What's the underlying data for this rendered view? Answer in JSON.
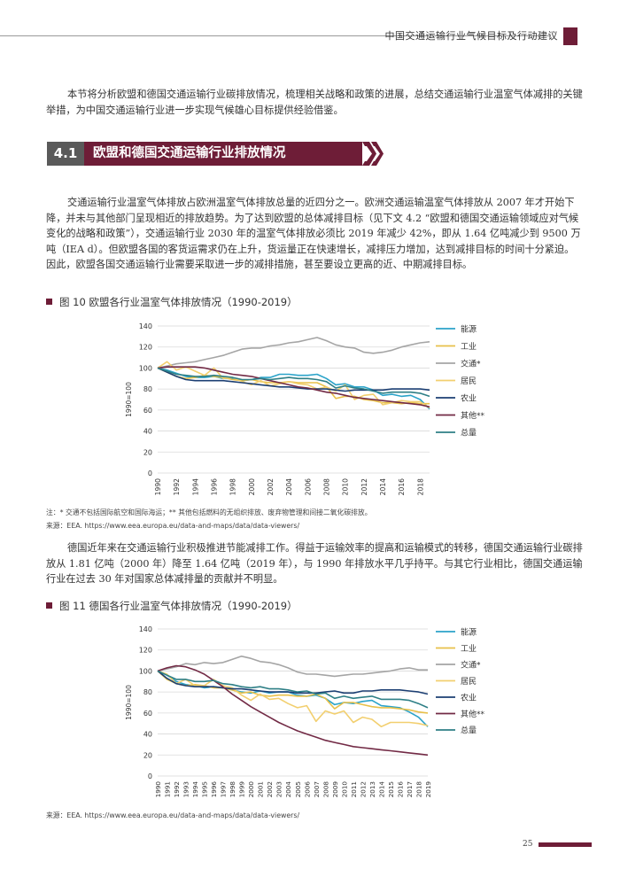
{
  "header": {
    "title": "中国交通运输行业气候目标及行动建议"
  },
  "intro": {
    "text": "本节将分析欧盟和德国交通运输行业碳排放情况，梳理相关战略和政策的进展，总结交通运输行业温室气体减排的关键举措，为中国交通运输行业进一步实现气候雄心目标提供经验借鉴。"
  },
  "section": {
    "number": "4.1",
    "title": "欧盟和德国交通运输行业排放情况"
  },
  "para_eu": {
    "text": "交通运输行业温室气体排放占欧洲温室气体排放总量的近四分之一。欧洲交通运输温室气体排放从 2007 年才开始下降，并未与其他部门呈现相近的排放趋势。为了达到欧盟的总体减排目标（见下文 4.2 “欧盟和德国交通运输领域应对气候变化的战略和政策”），交通运输行业 2030 年的温室气体排放必须比 2019 年减少 42%，即从 1.64 亿吨减少到 9500 万吨（IEA d）。但欧盟各国的客货运需求仍在上升，货运量正在快速增长，减排压力增加，达到减排目标的时间十分紧迫。因此，欧盟各国交通运输行业需要采取进一步的减排措施，甚至要设立更高的近、中期减排目标。"
  },
  "para_de": {
    "text": "德国近年来在交通运输行业积极推进节能减排工作。得益于运输效率的提高和运输模式的转移，德国交通运输行业碳排放从 1.81 亿吨（2000 年）降至 1.64 亿吨（2019 年），与 1990 年排放水平几乎持平。与其它行业相比，德国交通运输行业在过去 30 年对国家总体减排量的贡献并不明显。"
  },
  "fig10": {
    "title": "图 10 欧盟各行业温室气体排放情况（1990-2019）"
  },
  "fig11": {
    "title": "图 11 德国各行业温室气体排放情况（1990-2019）"
  },
  "notes": {
    "note1": "注：* 交通不包括国际航空和国际海运；** 其他包括燃料的无组织排放、废弃物管理和间接二氧化碳排放。",
    "source1": "来源：EEA. https://www.eea.europa.eu/data-and-maps/data/data-viewers/",
    "source2": "来源：EEA. https://www.eea.europa.eu/data-and-maps/data/data-viewers/"
  },
  "page_number": "25",
  "colors": {
    "accent": "#6e1d37",
    "section_num_bg": "#5a5a5a"
  },
  "chart_data": [
    {
      "type": "line",
      "title": "图 10 欧盟各行业温室气体排放情况（1990-2019）",
      "ylabel": "1990=100",
      "ylim": [
        0,
        140
      ],
      "yticks": [
        "0",
        "20",
        "40",
        "60",
        "80",
        "100",
        "120",
        "140"
      ],
      "x": [
        1990,
        1991,
        1992,
        1993,
        1994,
        1995,
        1996,
        1997,
        1998,
        1999,
        2000,
        2001,
        2002,
        2003,
        2004,
        2005,
        2006,
        2007,
        2008,
        2009,
        2010,
        2011,
        2012,
        2013,
        2014,
        2015,
        2016,
        2017,
        2018,
        2019
      ],
      "xticks": [
        "1990",
        "1992",
        "1994",
        "1996",
        "1998",
        "2000",
        "2002",
        "2004",
        "2006",
        "2008",
        "2010",
        "2012",
        "2014",
        "2016",
        "2018"
      ],
      "grid": "horizontal",
      "legend": "right",
      "series": [
        {
          "name": "能源",
          "color": "#2ba3c9",
          "values": [
            100,
            98,
            95,
            92,
            91,
            91,
            92,
            90,
            90,
            88,
            89,
            91,
            91,
            94,
            94,
            93,
            93,
            94,
            90,
            84,
            85,
            82,
            82,
            79,
            74,
            75,
            73,
            74,
            70,
            61
          ]
        },
        {
          "name": "工业",
          "color": "#e8c04a",
          "values": [
            100,
            96,
            92,
            90,
            91,
            93,
            92,
            91,
            89,
            88,
            89,
            87,
            86,
            86,
            87,
            86,
            86,
            86,
            82,
            71,
            73,
            73,
            70,
            69,
            67,
            67,
            66,
            67,
            66,
            66
          ]
        },
        {
          "name": "交通*",
          "color": "#a5a5a5",
          "values": [
            100,
            102,
            104,
            105,
            106,
            108,
            110,
            112,
            115,
            118,
            119,
            119,
            121,
            122,
            124,
            125,
            127,
            129,
            126,
            122,
            120,
            119,
            115,
            114,
            115,
            117,
            120,
            122,
            124,
            125
          ]
        },
        {
          "name": "居民",
          "color": "#f2cf6f",
          "values": [
            100,
            106,
            98,
            101,
            97,
            93,
            100,
            90,
            91,
            87,
            84,
            88,
            83,
            85,
            87,
            85,
            84,
            80,
            82,
            78,
            84,
            70,
            74,
            75,
            65,
            67,
            69,
            68,
            68,
            62
          ]
        },
        {
          "name": "农业",
          "color": "#1c3f73",
          "values": [
            100,
            96,
            92,
            89,
            88,
            88,
            88,
            88,
            87,
            86,
            85,
            84,
            83,
            82,
            82,
            81,
            80,
            80,
            80,
            79,
            78,
            79,
            79,
            79,
            79,
            80,
            80,
            80,
            80,
            79
          ]
        },
        {
          "name": "其他**",
          "color": "#722a45",
          "values": [
            100,
            101,
            101,
            101,
            101,
            100,
            98,
            96,
            94,
            93,
            92,
            90,
            88,
            86,
            84,
            82,
            81,
            79,
            77,
            76,
            74,
            72,
            71,
            70,
            69,
            68,
            67,
            66,
            65,
            63
          ]
        },
        {
          "name": "总量",
          "color": "#2e7f86",
          "values": [
            100,
            97,
            94,
            93,
            92,
            92,
            93,
            92,
            91,
            89,
            89,
            90,
            89,
            90,
            91,
            90,
            90,
            89,
            87,
            81,
            83,
            81,
            80,
            78,
            76,
            77,
            77,
            77,
            76,
            73
          ]
        }
      ]
    },
    {
      "type": "line",
      "title": "图 11 德国各行业温室气体排放情况（1990-2019）",
      "ylabel": "1990=100",
      "ylim": [
        0,
        140
      ],
      "yticks": [
        "0",
        "20",
        "40",
        "60",
        "80",
        "100",
        "120",
        "140"
      ],
      "x": [
        1990,
        1991,
        1992,
        1993,
        1994,
        1995,
        1996,
        1997,
        1998,
        1999,
        2000,
        2001,
        2002,
        2003,
        2004,
        2005,
        2006,
        2007,
        2008,
        2009,
        2010,
        2011,
        2012,
        2013,
        2014,
        2015,
        2016,
        2017,
        2018,
        2019
      ],
      "xticks": [
        "1990",
        "1991",
        "1992",
        "1993",
        "1994",
        "1995",
        "1996",
        "1997",
        "1998",
        "1999",
        "2000",
        "2001",
        "2002",
        "2003",
        "2004",
        "2005",
        "2006",
        "2007",
        "2008",
        "2009",
        "2010",
        "2011",
        "2012",
        "2013",
        "2014",
        "2015",
        "2016",
        "2017",
        "2018",
        "2019"
      ],
      "grid": "horizontal",
      "legend": "right",
      "series": [
        {
          "name": "能源",
          "color": "#2ba3c9",
          "values": [
            100,
            96,
            90,
            87,
            86,
            84,
            85,
            84,
            82,
            80,
            79,
            81,
            79,
            80,
            80,
            77,
            76,
            77,
            74,
            68,
            70,
            69,
            71,
            72,
            67,
            66,
            65,
            61,
            56,
            47
          ]
        },
        {
          "name": "工业",
          "color": "#e8c04a",
          "values": [
            100,
            92,
            88,
            86,
            87,
            86,
            84,
            84,
            82,
            79,
            80,
            77,
            76,
            77,
            77,
            76,
            76,
            78,
            74,
            64,
            70,
            70,
            68,
            66,
            65,
            65,
            64,
            63,
            61,
            60
          ]
        },
        {
          "name": "交通*",
          "color": "#a5a5a5",
          "values": [
            100,
            102,
            104,
            107,
            106,
            108,
            107,
            108,
            111,
            114,
            112,
            109,
            108,
            106,
            103,
            99,
            97,
            97,
            96,
            95,
            96,
            97,
            97,
            98,
            99,
            100,
            102,
            103,
            101,
            101
          ]
        },
        {
          "name": "居民",
          "color": "#f2cf6f",
          "values": [
            100,
            97,
            88,
            92,
            86,
            86,
            92,
            86,
            84,
            77,
            72,
            78,
            73,
            74,
            69,
            65,
            67,
            52,
            62,
            59,
            62,
            51,
            56,
            54,
            47,
            51,
            51,
            51,
            50,
            48
          ]
        },
        {
          "name": "农业",
          "color": "#1c3f73",
          "values": [
            100,
            93,
            88,
            86,
            85,
            85,
            85,
            84,
            83,
            83,
            82,
            81,
            80,
            80,
            80,
            79,
            79,
            79,
            80,
            81,
            79,
            79,
            81,
            81,
            82,
            82,
            82,
            81,
            80,
            78
          ]
        },
        {
          "name": "其他**",
          "color": "#722a45",
          "values": [
            100,
            103,
            105,
            104,
            101,
            97,
            91,
            85,
            78,
            72,
            66,
            61,
            56,
            51,
            47,
            43,
            40,
            37,
            34,
            32,
            30,
            28,
            27,
            26,
            25,
            24,
            23,
            22,
            21,
            20
          ]
        },
        {
          "name": "总量",
          "color": "#2e7f86",
          "values": [
            100,
            96,
            92,
            92,
            90,
            90,
            91,
            88,
            87,
            85,
            84,
            85,
            83,
            83,
            82,
            80,
            81,
            78,
            79,
            74,
            76,
            74,
            75,
            76,
            73,
            73,
            73,
            72,
            69,
            65
          ]
        }
      ]
    }
  ]
}
